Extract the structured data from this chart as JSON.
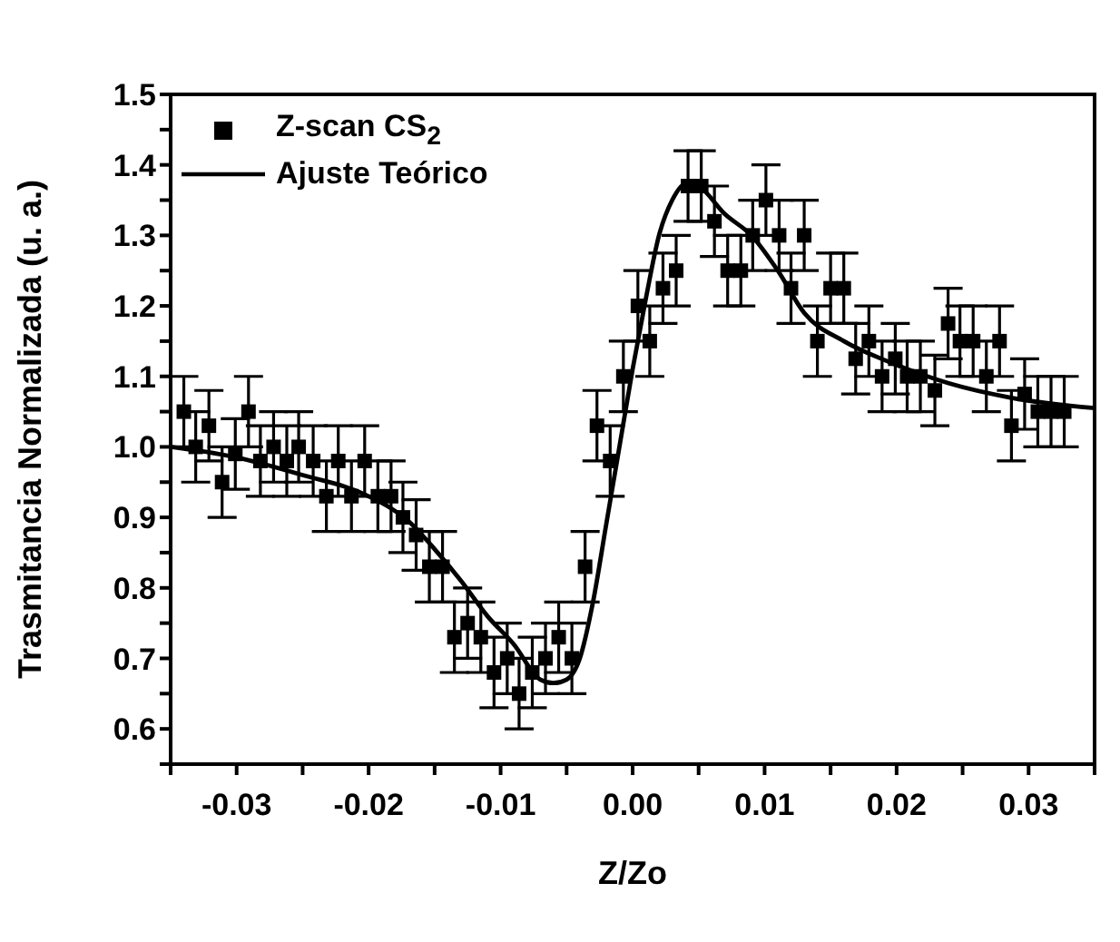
{
  "chart_data": {
    "type": "scatter",
    "xlabel": "Z/Zo",
    "ylabel": "Trasmitancia Normalizada (u. a.)",
    "xlim": [
      -0.035,
      0.035
    ],
    "xticks": [
      {
        "value": -0.035,
        "label": null
      },
      -0.03,
      {
        "value": -0.025,
        "label": null
      },
      -0.02,
      {
        "value": -0.015,
        "label": null
      },
      -0.01,
      {
        "value": -0.005,
        "label": null
      },
      {
        "value": 0,
        "label": "0.00"
      },
      {
        "value": 0.005,
        "label": null
      },
      0.01,
      {
        "value": 0.015,
        "label": null
      },
      0.02,
      {
        "value": 0.025,
        "label": null
      },
      0.03,
      {
        "value": 0.035,
        "label": null
      }
    ],
    "ylim": [
      0.55,
      1.5
    ],
    "yticks": [
      {
        "value": 0.55,
        "label": null
      },
      0.6,
      {
        "value": 0.65,
        "label": null
      },
      0.7,
      {
        "value": 0.75,
        "label": null
      },
      0.8,
      {
        "value": 0.85,
        "label": null
      },
      0.9,
      {
        "value": 0.95,
        "label": null
      },
      {
        "value": 1,
        "label": "1.0"
      },
      {
        "value": 1.05,
        "label": null
      },
      1.1,
      {
        "value": 1.15,
        "label": null
      },
      1.2,
      {
        "value": 1.25,
        "label": null
      },
      1.3,
      {
        "value": 1.35,
        "label": null
      },
      1.4,
      {
        "value": 1.45,
        "label": null
      },
      1.5
    ],
    "legend": "top left",
    "series": [
      {
        "name": "Z-scan CS$_{2}$",
        "marker": "square",
        "color": "#000000",
        "x": [
          -0.034,
          -0.0331,
          -0.0321,
          -0.0311,
          -0.0301,
          -0.0291,
          -0.0282,
          -0.0272,
          -0.0262,
          -0.0253,
          -0.0242,
          -0.0232,
          -0.0223,
          -0.0213,
          -0.0203,
          -0.0193,
          -0.0183,
          -0.0174,
          -0.0164,
          -0.0154,
          -0.0144,
          -0.0135,
          -0.0125,
          -0.0115,
          -0.0105,
          -0.0095,
          -0.0086,
          -0.0076,
          -0.0066,
          -0.0056,
          -0.0046,
          -0.0036,
          -0.0027,
          -0.0017,
          -0.0007,
          0.0004,
          0.0013,
          0.0023,
          0.0033,
          0.0042,
          0.0052,
          0.0062,
          0.0072,
          0.0082,
          0.0091,
          0.0101,
          0.0111,
          0.012,
          0.013,
          0.014,
          0.015,
          0.016,
          0.0169,
          0.0179,
          0.0189,
          0.0199,
          0.0208,
          0.0218,
          0.0229,
          0.0239,
          0.0248,
          0.0258,
          0.0268,
          0.0278,
          0.0287,
          0.0297,
          0.0307,
          0.0317,
          0.0327
        ],
        "values": [
          1.05,
          1.0,
          1.03,
          0.95,
          0.99,
          1.05,
          0.98,
          1.0,
          0.98,
          1.0,
          0.98,
          0.93,
          0.98,
          0.93,
          0.98,
          0.93,
          0.93,
          0.9,
          0.875,
          0.83,
          0.83,
          0.73,
          0.75,
          0.73,
          0.68,
          0.7,
          0.65,
          0.68,
          0.7,
          0.73,
          0.7,
          0.83,
          1.03,
          0.98,
          1.1,
          1.2,
          1.15,
          1.225,
          1.25,
          1.37,
          1.37,
          1.32,
          1.25,
          1.25,
          1.3,
          1.35,
          1.3,
          1.225,
          1.3,
          1.15,
          1.225,
          1.225,
          1.125,
          1.15,
          1.1,
          1.125,
          1.1,
          1.1,
          1.08,
          1.175,
          1.15,
          1.15,
          1.1,
          1.15,
          1.03,
          1.075,
          1.05,
          1.05,
          1.05
        ],
        "errors": [
          0.05,
          0.05,
          0.05,
          0.05,
          0.05,
          0.05,
          0.05,
          0.05,
          0.05,
          0.05,
          0.05,
          0.05,
          0.05,
          0.05,
          0.05,
          0.05,
          0.05,
          0.05,
          0.05,
          0.05,
          0.05,
          0.05,
          0.05,
          0.05,
          0.05,
          0.05,
          0.05,
          0.05,
          0.05,
          0.05,
          0.05,
          0.05,
          0.05,
          0.05,
          0.05,
          0.05,
          0.05,
          0.05,
          0.05,
          0.05,
          0.05,
          0.05,
          0.05,
          0.05,
          0.05,
          0.05,
          0.05,
          0.05,
          0.05,
          0.05,
          0.05,
          0.05,
          0.05,
          0.05,
          0.05,
          0.05,
          0.05,
          0.05,
          0.05,
          0.05,
          0.05,
          0.05,
          0.05,
          0.05,
          0.05,
          0.05,
          0.05,
          0.05,
          0.05
        ]
      },
      {
        "name": "Ajuste Teórico",
        "type": "line",
        "marker": "none",
        "line_style": "solid",
        "color": "#000000",
        "x": [
          -0.035,
          -0.03,
          -0.025,
          -0.02,
          -0.017,
          -0.015,
          -0.013,
          -0.011,
          -0.009,
          -0.007,
          -0.006,
          -0.005,
          -0.004,
          -0.003,
          -0.002,
          -0.001,
          0,
          0.001,
          0.002,
          0.003,
          0.0042,
          0.005,
          0.007,
          0.009,
          0.011,
          0.013,
          0.016,
          0.0195,
          0.024,
          0.0286,
          0.035
        ],
        "values": [
          1.0,
          0.985,
          0.96,
          0.93,
          0.895,
          0.855,
          0.81,
          0.76,
          0.72,
          0.67,
          0.665,
          0.67,
          0.7,
          0.78,
          0.89,
          1.0,
          1.11,
          1.21,
          1.3,
          1.35,
          1.375,
          1.37,
          1.33,
          1.3,
          1.25,
          1.19,
          1.15,
          1.12,
          1.09,
          1.07,
          1.055
        ]
      }
    ]
  }
}
